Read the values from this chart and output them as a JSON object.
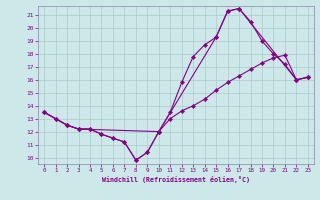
{
  "xlabel": "Windchill (Refroidissement éolien,°C)",
  "bg_color": "#cce8e8",
  "line_color": "#880088",
  "grid_color": "#aacccc",
  "spine_color": "#8888aa",
  "xlim": [
    -0.5,
    23.5
  ],
  "ylim": [
    9.5,
    21.7
  ],
  "yticks": [
    10,
    11,
    12,
    13,
    14,
    15,
    16,
    17,
    18,
    19,
    20,
    21
  ],
  "xticks": [
    0,
    1,
    2,
    3,
    4,
    5,
    6,
    7,
    8,
    9,
    10,
    11,
    12,
    13,
    14,
    15,
    16,
    17,
    18,
    19,
    20,
    21,
    22,
    23
  ],
  "curve1_x": [
    0,
    1,
    2,
    3,
    4,
    5,
    6,
    7,
    8,
    9,
    10,
    11,
    12,
    13,
    14,
    15,
    16,
    17,
    18,
    19,
    20,
    21,
    22,
    23
  ],
  "curve1_y": [
    13.5,
    13.0,
    12.5,
    12.2,
    12.2,
    11.8,
    11.5,
    11.2,
    9.8,
    10.4,
    12.0,
    13.5,
    15.8,
    17.8,
    18.7,
    19.3,
    21.3,
    21.5,
    20.5,
    19.0,
    18.0,
    17.2,
    16.0,
    16.2
  ],
  "curve2_x": [
    0,
    1,
    2,
    3,
    4,
    5,
    6,
    7,
    8,
    9,
    10,
    11,
    12,
    13,
    14,
    15,
    16,
    17,
    18,
    19,
    20,
    21,
    22,
    23
  ],
  "curve2_y": [
    13.5,
    13.0,
    12.5,
    12.2,
    12.2,
    11.8,
    11.5,
    11.2,
    9.8,
    10.4,
    12.0,
    13.0,
    13.6,
    14.0,
    14.5,
    15.2,
    15.8,
    16.3,
    16.8,
    17.3,
    17.7,
    17.9,
    16.0,
    16.2
  ],
  "curve3_x": [
    0,
    2,
    3,
    10,
    15,
    16,
    17,
    22,
    23
  ],
  "curve3_y": [
    13.5,
    12.5,
    12.2,
    12.0,
    19.3,
    21.3,
    21.5,
    16.0,
    16.2
  ]
}
